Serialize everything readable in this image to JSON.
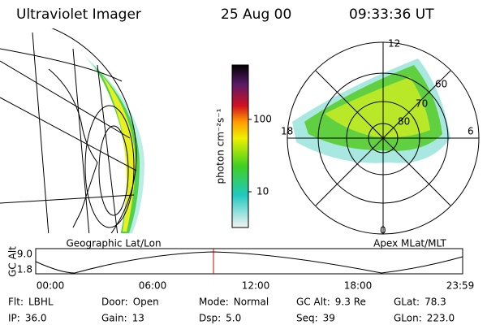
{
  "header": {
    "instrument": "Ultraviolet Imager",
    "date": "25 Aug 00",
    "time": "09:33:36 UT"
  },
  "colorbar": {
    "label": "photon cm⁻²s⁻¹",
    "ticks": [
      "100",
      "10"
    ]
  },
  "left_panel": {
    "label": "Geographic Lat/Lon"
  },
  "right_panel": {
    "label": "Apex MLat/MLT",
    "mlt_labels": [
      "12",
      "18",
      "6",
      "0"
    ],
    "mlat_labels": [
      "60",
      "70",
      "80"
    ]
  },
  "orbit": {
    "ylabel": "GC Alt",
    "yticks": [
      "9.0",
      "1.8"
    ],
    "xticks": [
      "00:00",
      "06:00",
      "12:00",
      "18:00",
      "23:59"
    ]
  },
  "info": [
    [
      {
        "label": "Flt:",
        "value": "LBHL"
      },
      {
        "label": "Door:",
        "value": "Open"
      },
      {
        "label": "Mode:",
        "value": "Normal"
      },
      {
        "label": "GC Alt:",
        "value": "9.3 Re"
      },
      {
        "label": "GLat:",
        "value": "78.3"
      }
    ],
    [
      {
        "label": "IP:",
        "value": "36.0"
      },
      {
        "label": "Gain:",
        "value": "13"
      },
      {
        "label": "Dsp:",
        "value": "5.0"
      },
      {
        "label": "Seq:",
        "value": "39"
      },
      {
        "label": "GLon:",
        "value": "223.0"
      }
    ]
  ]
}
